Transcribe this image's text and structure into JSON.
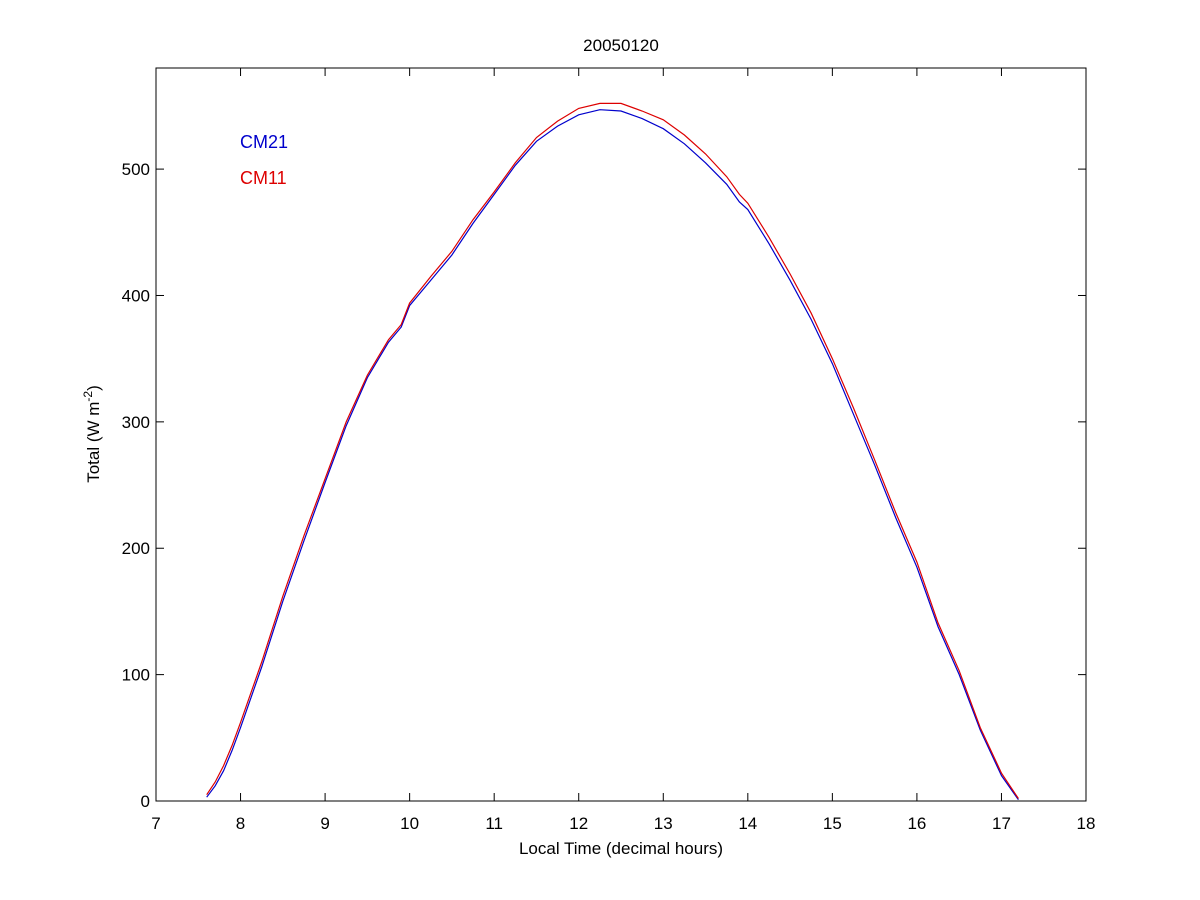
{
  "chart_data": {
    "type": "line",
    "title": "20050120",
    "xlabel": "Local Time (decimal hours)",
    "ylabel": "Total (W m^-2)",
    "ylabel_parts": {
      "base": "Total (W m",
      "exp": "-2",
      "close": ")"
    },
    "xlim": [
      7,
      18
    ],
    "ylim": [
      0,
      580
    ],
    "xticks": [
      7,
      8,
      9,
      10,
      11,
      12,
      13,
      14,
      15,
      16,
      17,
      18
    ],
    "yticks": [
      0,
      100,
      200,
      300,
      400,
      500
    ],
    "grid": false,
    "legend_position": "top-left",
    "series": [
      {
        "name": "CM21",
        "color": "#0000cc",
        "x": [
          7.6,
          7.7,
          7.8,
          7.9,
          8.0,
          8.25,
          8.5,
          8.75,
          9.0,
          9.25,
          9.5,
          9.75,
          9.9,
          10.0,
          10.25,
          10.5,
          10.75,
          11.0,
          11.25,
          11.5,
          11.75,
          12.0,
          12.25,
          12.5,
          12.75,
          13.0,
          13.25,
          13.5,
          13.75,
          13.9,
          14.0,
          14.25,
          14.5,
          14.75,
          15.0,
          15.25,
          15.5,
          15.75,
          16.0,
          16.25,
          16.5,
          16.75,
          17.0,
          17.2
        ],
        "values": [
          3,
          12,
          24,
          40,
          58,
          106,
          158,
          206,
          252,
          297,
          335,
          363,
          375,
          392,
          412,
          432,
          457,
          480,
          503,
          522,
          534,
          543,
          547,
          546,
          540,
          532,
          520,
          505,
          488,
          474,
          468,
          441,
          412,
          381,
          346,
          306,
          266,
          224,
          185,
          138,
          100,
          56,
          20,
          1
        ]
      },
      {
        "name": "CM11",
        "color": "#dd0000",
        "x": [
          7.6,
          7.7,
          7.8,
          7.9,
          8.0,
          8.25,
          8.5,
          8.75,
          9.0,
          9.25,
          9.5,
          9.75,
          9.9,
          10.0,
          10.25,
          10.5,
          10.75,
          11.0,
          11.25,
          11.5,
          11.75,
          12.0,
          12.25,
          12.5,
          12.75,
          13.0,
          13.25,
          13.5,
          13.75,
          13.9,
          14.0,
          14.25,
          14.5,
          14.75,
          15.0,
          15.25,
          15.5,
          15.75,
          16.0,
          16.25,
          16.5,
          16.75,
          17.0,
          17.2
        ],
        "values": [
          5,
          15,
          28,
          44,
          62,
          110,
          162,
          210,
          255,
          300,
          337,
          365,
          377,
          394,
          415,
          435,
          460,
          482,
          505,
          525,
          538,
          548,
          552,
          552,
          546,
          539,
          527,
          512,
          494,
          480,
          473,
          446,
          417,
          386,
          350,
          311,
          270,
          228,
          189,
          141,
          103,
          58,
          22,
          2
        ]
      }
    ]
  }
}
